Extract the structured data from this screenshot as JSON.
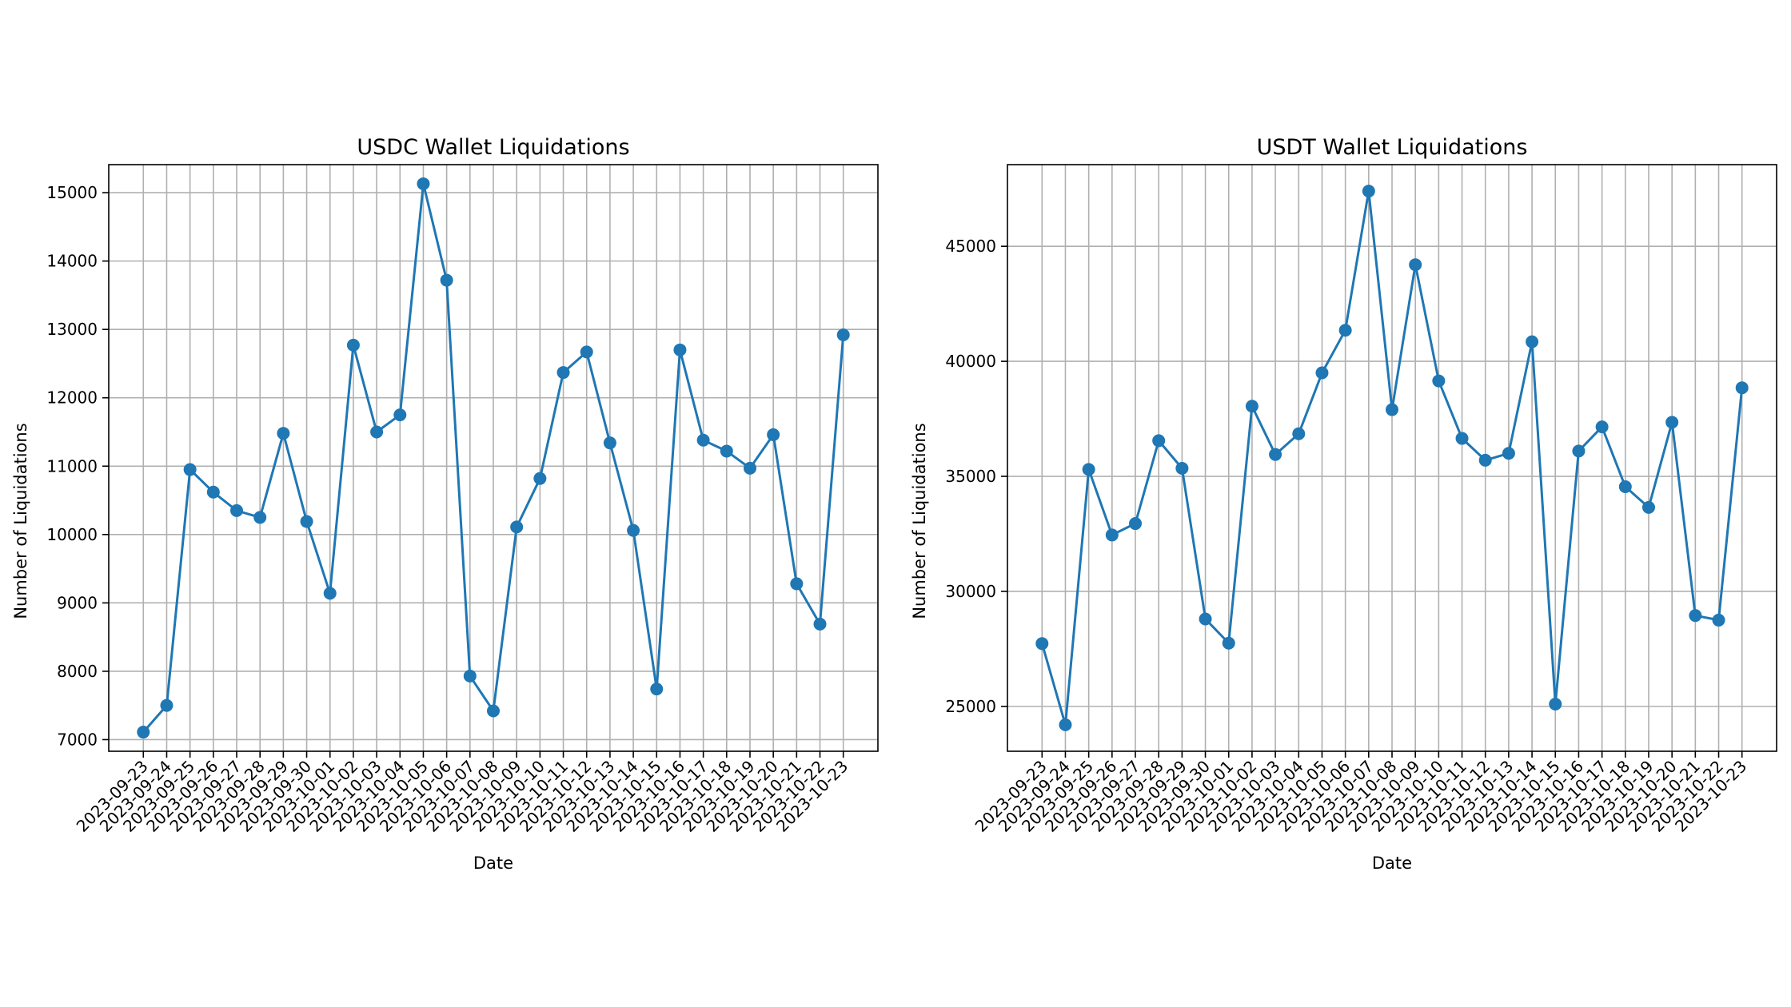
{
  "chart_data": [
    {
      "type": "line",
      "title": "USDC Wallet Liquidations",
      "xlabel": "Date",
      "ylabel": "Number of Liquidations",
      "x": [
        "2023-09-23",
        "2023-09-24",
        "2023-09-25",
        "2023-09-26",
        "2023-09-27",
        "2023-09-28",
        "2023-09-29",
        "2023-09-30",
        "2023-10-01",
        "2023-10-02",
        "2023-10-03",
        "2023-10-04",
        "2023-10-05",
        "2023-10-06",
        "2023-10-07",
        "2023-10-08",
        "2023-10-09",
        "2023-10-10",
        "2023-10-11",
        "2023-10-12",
        "2023-10-13",
        "2023-10-14",
        "2023-10-15",
        "2023-10-16",
        "2023-10-17",
        "2023-10-18",
        "2023-10-19",
        "2023-10-20",
        "2023-10-21",
        "2023-10-22",
        "2023-10-23"
      ],
      "series": [
        {
          "values": [
            7110,
            7500,
            10950,
            10620,
            10350,
            10250,
            11480,
            10190,
            9140,
            12770,
            11500,
            11750,
            15130,
            13720,
            7930,
            7420,
            10110,
            10820,
            12370,
            12670,
            11340,
            10060,
            7740,
            12700,
            11380,
            11220,
            10970,
            11460,
            9280,
            8690,
            12920
          ],
          "color": "#1f77b4",
          "marker": "circle"
        }
      ],
      "ylim": [
        6830,
        15410
      ],
      "yticks": [
        7000,
        8000,
        9000,
        10000,
        11000,
        12000,
        13000,
        14000,
        15000
      ],
      "grid": true
    },
    {
      "type": "line",
      "title": "USDT Wallet Liquidations",
      "xlabel": "Date",
      "ylabel": "Number of Liquidations",
      "x": [
        "2023-09-23",
        "2023-09-24",
        "2023-09-25",
        "2023-09-26",
        "2023-09-27",
        "2023-09-28",
        "2023-09-29",
        "2023-09-30",
        "2023-10-01",
        "2023-10-02",
        "2023-10-03",
        "2023-10-04",
        "2023-10-05",
        "2023-10-06",
        "2023-10-07",
        "2023-10-08",
        "2023-10-09",
        "2023-10-10",
        "2023-10-11",
        "2023-10-12",
        "2023-10-13",
        "2023-10-14",
        "2023-10-15",
        "2023-10-16",
        "2023-10-17",
        "2023-10-18",
        "2023-10-19",
        "2023-10-20",
        "2023-10-21",
        "2023-10-22",
        "2023-10-23"
      ],
      "series": [
        {
          "values": [
            27730,
            24200,
            35300,
            32450,
            32950,
            36550,
            35350,
            28800,
            27750,
            38050,
            35950,
            36850,
            39500,
            41350,
            47400,
            37900,
            44200,
            39150,
            36650,
            35700,
            36000,
            40850,
            25100,
            36100,
            37150,
            34550,
            33650,
            37350,
            28950,
            28750,
            38850
          ],
          "color": "#1f77b4",
          "marker": "circle"
        }
      ],
      "ylim": [
        23050,
        48550
      ],
      "yticks": [
        25000,
        30000,
        35000,
        40000,
        45000
      ],
      "grid": true
    }
  ]
}
